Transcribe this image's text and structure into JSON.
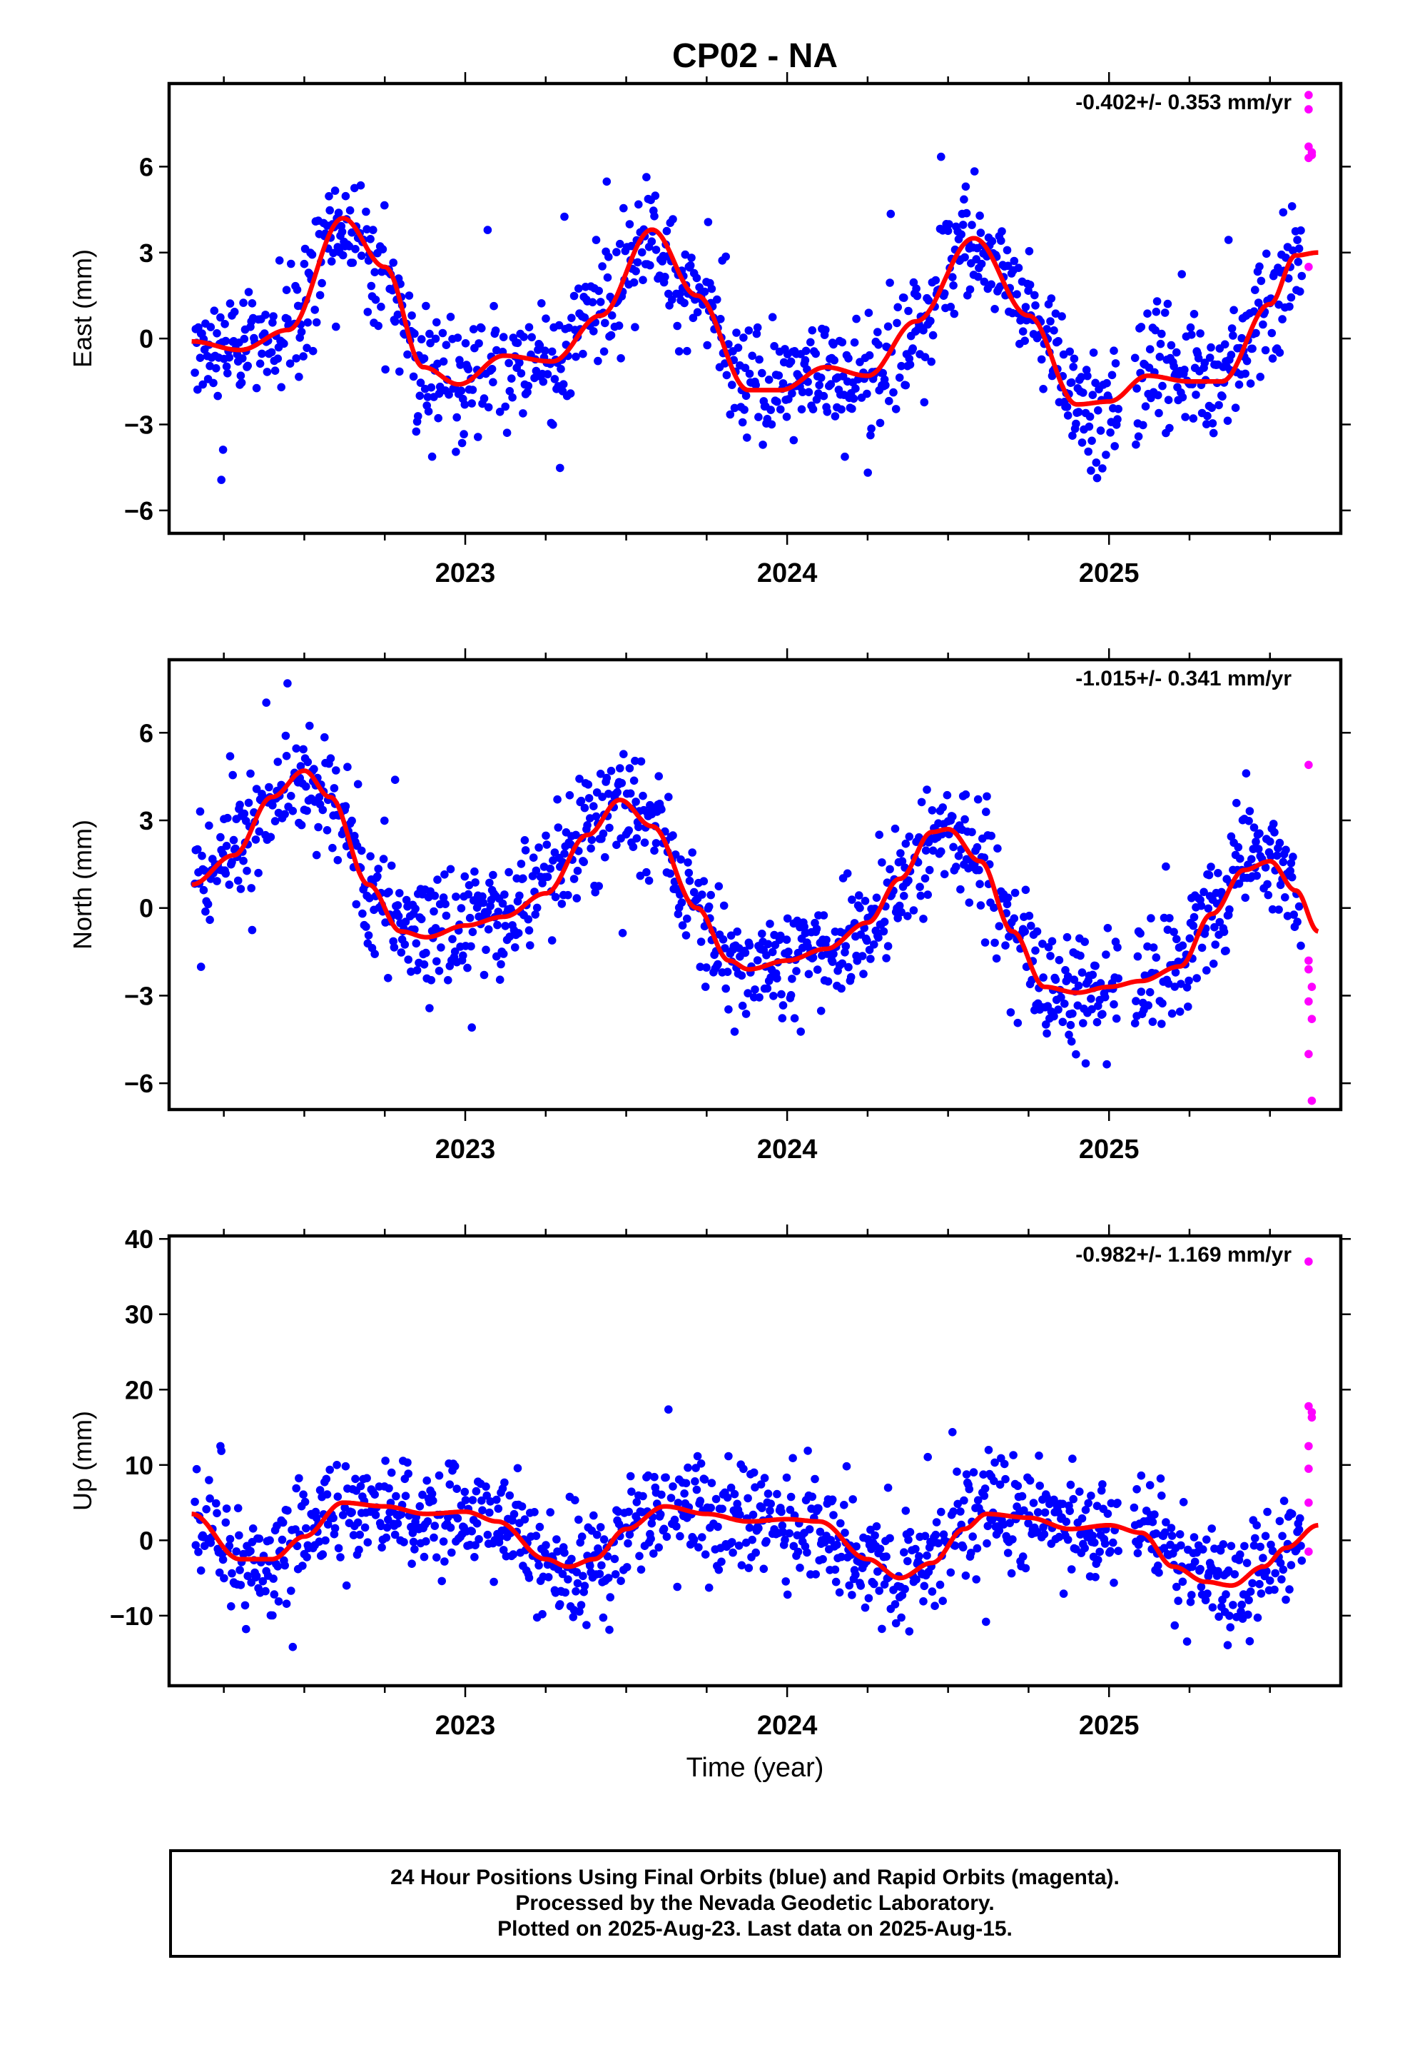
{
  "title": "CP02 - NA",
  "colors": {
    "final": "#0000ff",
    "rapid": "#ff00ff",
    "fit": "#ff0000"
  },
  "x_axis": {
    "label": "Time (year)",
    "ticks": [
      "2023",
      "2024",
      "2025"
    ],
    "range": [
      2022.08,
      2025.72
    ]
  },
  "panels": [
    {
      "name": "east",
      "ylabel": "East (mm)",
      "rate": "-0.402+/- 0.353 mm/yr"
    },
    {
      "name": "north",
      "ylabel": "North (mm)",
      "rate": "-1.015+/- 0.341 mm/yr"
    },
    {
      "name": "up",
      "ylabel": "Up (mm)",
      "rate": "-0.982+/- 1.169 mm/yr"
    }
  ],
  "footer": {
    "line1": "24 Hour Positions Using Final Orbits (blue) and Rapid Orbits (magenta).",
    "line2": "Processed by the Nevada Geodetic Laboratory.",
    "line3": "Plotted on 2025-Aug-23. Last data on 2025-Aug-15."
  },
  "chart_data": [
    {
      "type": "scatter",
      "panel": "east",
      "xlabel": "Time (year)",
      "ylabel": "East (mm)",
      "xlim": [
        2022.08,
        2025.72
      ],
      "ylim": [
        -6.8,
        8.9
      ],
      "yticks": [
        -6,
        -3,
        0,
        3,
        6
      ],
      "annotation": "-0.402+/- 0.353 mm/yr",
      "fit_line": [
        [
          2022.15,
          -0.1
        ],
        [
          2022.3,
          -0.4
        ],
        [
          2022.45,
          0.3
        ],
        [
          2022.62,
          4.2
        ],
        [
          2022.75,
          2.5
        ],
        [
          2022.87,
          -1.0
        ],
        [
          2022.98,
          -1.6
        ],
        [
          2023.12,
          -0.6
        ],
        [
          2023.27,
          -0.8
        ],
        [
          2023.42,
          0.8
        ],
        [
          2023.58,
          3.8
        ],
        [
          2023.72,
          1.5
        ],
        [
          2023.88,
          -1.8
        ],
        [
          2023.98,
          -1.8
        ],
        [
          2024.12,
          -1.0
        ],
        [
          2024.25,
          -1.3
        ],
        [
          2024.4,
          0.6
        ],
        [
          2024.58,
          3.5
        ],
        [
          2024.75,
          0.8
        ],
        [
          2024.9,
          -2.3
        ],
        [
          2025.0,
          -2.2
        ],
        [
          2025.12,
          -1.3
        ],
        [
          2025.25,
          -1.5
        ],
        [
          2025.35,
          -1.5
        ],
        [
          2025.5,
          1.2
        ],
        [
          2025.58,
          2.9
        ],
        [
          2025.65,
          3.0
        ]
      ],
      "rapid_points": [
        [
          2025.62,
          8.5
        ],
        [
          2025.62,
          8.0
        ],
        [
          2025.62,
          6.7
        ],
        [
          2025.63,
          6.5
        ],
        [
          2025.62,
          6.3
        ],
        [
          2025.63,
          6.4
        ],
        [
          2025.62,
          2.5
        ]
      ]
    },
    {
      "type": "scatter",
      "panel": "north",
      "xlabel": "Time (year)",
      "ylabel": "North (mm)",
      "xlim": [
        2022.08,
        2025.72
      ],
      "ylim": [
        -6.9,
        8.5
      ],
      "yticks": [
        -6,
        -3,
        0,
        3,
        6
      ],
      "annotation": "-1.015+/- 0.341 mm/yr",
      "fit_line": [
        [
          2022.15,
          0.8
        ],
        [
          2022.28,
          1.8
        ],
        [
          2022.4,
          3.8
        ],
        [
          2022.5,
          4.7
        ],
        [
          2022.58,
          3.8
        ],
        [
          2022.7,
          0.8
        ],
        [
          2022.8,
          -0.8
        ],
        [
          2022.88,
          -1.0
        ],
        [
          2023.0,
          -0.6
        ],
        [
          2023.12,
          -0.3
        ],
        [
          2023.25,
          0.5
        ],
        [
          2023.38,
          2.5
        ],
        [
          2023.48,
          3.7
        ],
        [
          2023.58,
          2.8
        ],
        [
          2023.72,
          0.0
        ],
        [
          2023.82,
          -1.8
        ],
        [
          2023.88,
          -2.1
        ],
        [
          2024.0,
          -1.8
        ],
        [
          2024.12,
          -1.4
        ],
        [
          2024.25,
          -0.5
        ],
        [
          2024.35,
          1.0
        ],
        [
          2024.45,
          2.6
        ],
        [
          2024.5,
          2.7
        ],
        [
          2024.6,
          1.6
        ],
        [
          2024.7,
          -0.8
        ],
        [
          2024.8,
          -2.7
        ],
        [
          2024.9,
          -2.9
        ],
        [
          2025.0,
          -2.7
        ],
        [
          2025.1,
          -2.5
        ],
        [
          2025.22,
          -2.0
        ],
        [
          2025.32,
          -0.2
        ],
        [
          2025.42,
          1.3
        ],
        [
          2025.5,
          1.6
        ],
        [
          2025.58,
          0.6
        ],
        [
          2025.65,
          -0.8
        ]
      ],
      "rapid_points": [
        [
          2025.62,
          4.9
        ],
        [
          2025.62,
          -1.8
        ],
        [
          2025.62,
          -2.1
        ],
        [
          2025.63,
          -2.7
        ],
        [
          2025.62,
          -3.2
        ],
        [
          2025.63,
          -3.8
        ],
        [
          2025.62,
          -5.0
        ],
        [
          2025.63,
          -6.6
        ]
      ]
    },
    {
      "type": "scatter",
      "panel": "up",
      "xlabel": "Time (year)",
      "ylabel": "Up (mm)",
      "xlim": [
        2022.08,
        2025.72
      ],
      "ylim": [
        -19.3,
        40.4
      ],
      "yticks": [
        -10,
        0,
        10,
        20,
        30,
        40
      ],
      "annotation": "-0.982+/- 1.169 mm/yr",
      "fit_line": [
        [
          2022.15,
          3.5
        ],
        [
          2022.3,
          -2.5
        ],
        [
          2022.4,
          -2.5
        ],
        [
          2022.5,
          0.5
        ],
        [
          2022.62,
          5.0
        ],
        [
          2022.75,
          4.5
        ],
        [
          2022.88,
          3.5
        ],
        [
          2023.0,
          3.8
        ],
        [
          2023.1,
          2.5
        ],
        [
          2023.25,
          -2.5
        ],
        [
          2023.32,
          -3.5
        ],
        [
          2023.4,
          -2.5
        ],
        [
          2023.5,
          1.5
        ],
        [
          2023.62,
          4.5
        ],
        [
          2023.75,
          3.5
        ],
        [
          2023.88,
          2.5
        ],
        [
          2024.0,
          2.8
        ],
        [
          2024.1,
          2.5
        ],
        [
          2024.25,
          -2.5
        ],
        [
          2024.35,
          -5.0
        ],
        [
          2024.45,
          -3.0
        ],
        [
          2024.55,
          1.5
        ],
        [
          2024.62,
          3.5
        ],
        [
          2024.75,
          3.0
        ],
        [
          2024.88,
          1.5
        ],
        [
          2025.0,
          2.0
        ],
        [
          2025.1,
          1.0
        ],
        [
          2025.2,
          -3.5
        ],
        [
          2025.3,
          -5.5
        ],
        [
          2025.38,
          -6.0
        ],
        [
          2025.48,
          -3.5
        ],
        [
          2025.55,
          -1.0
        ],
        [
          2025.65,
          2.0
        ]
      ],
      "rapid_points": [
        [
          2025.62,
          37.0
        ],
        [
          2025.62,
          17.8
        ],
        [
          2025.63,
          17.0
        ],
        [
          2025.63,
          16.3
        ],
        [
          2025.62,
          12.5
        ],
        [
          2025.62,
          9.5
        ],
        [
          2025.62,
          5.0
        ],
        [
          2025.62,
          -1.5
        ]
      ]
    }
  ]
}
